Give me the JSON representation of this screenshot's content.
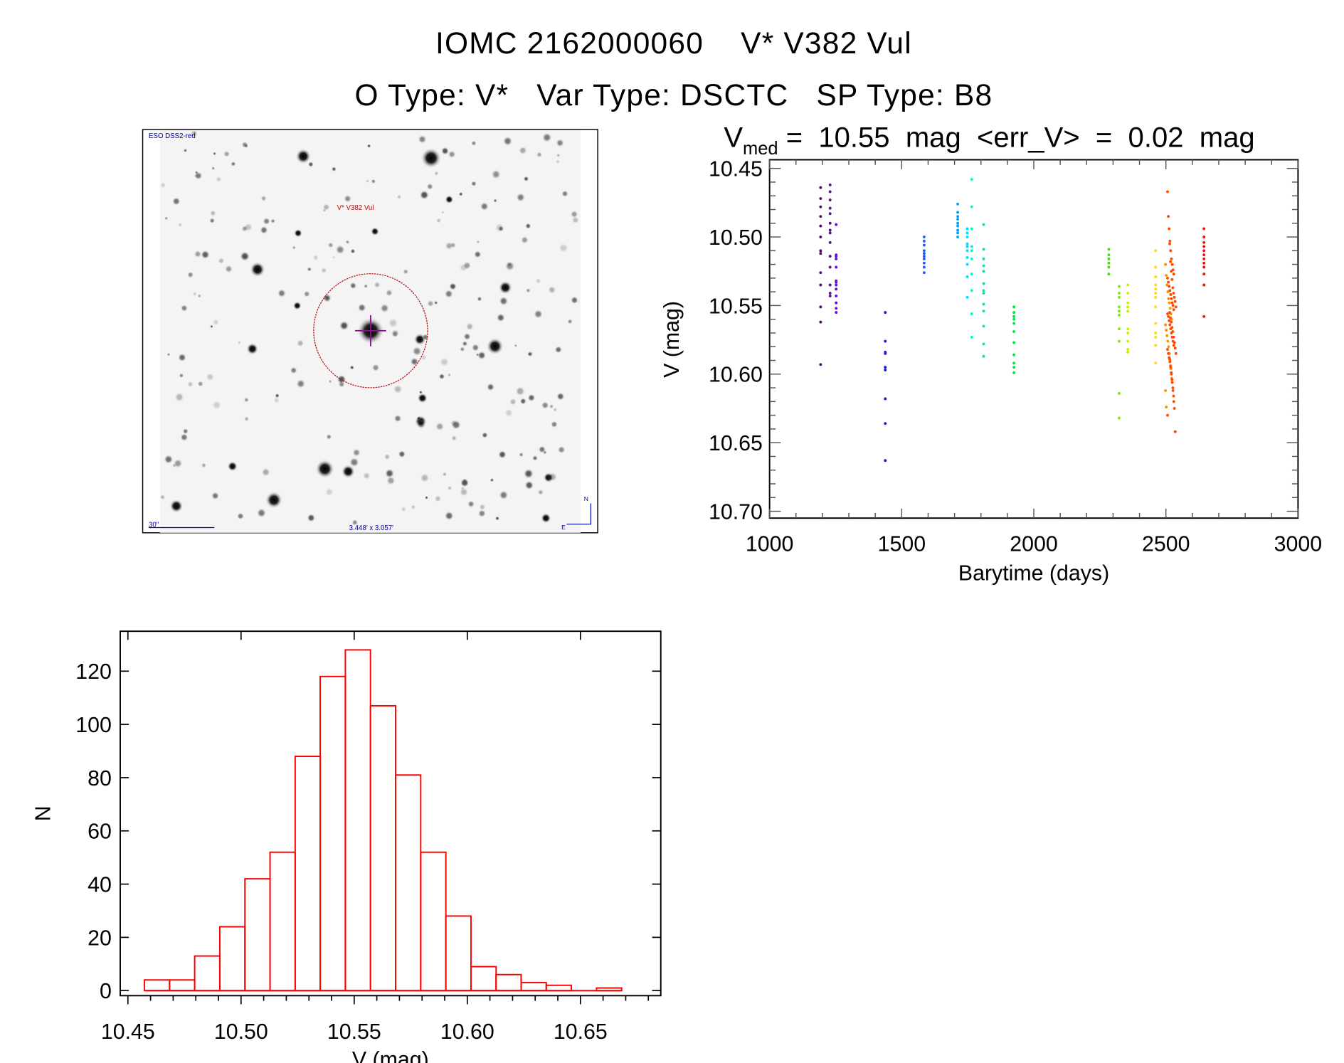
{
  "header": {
    "title_line1": "IOMC 2162000060    V* V382 Vul",
    "title_line2": "O Type: V*   Var Type: DSCTC   SP Type: B8"
  },
  "finder": {
    "survey_label": "ESO DSS2-red",
    "target_label": "V* V382 Vul",
    "scale_label": "30\"",
    "fov_label": "3.448' x 3.057'",
    "north_label": "N",
    "east_label": "E"
  },
  "lightcurve_header": {
    "v_symbol": "V",
    "v_subscript": "med",
    "rest": " =  10.55  mag  <err_V>  =  0.02  mag"
  },
  "chart_data": [
    {
      "type": "scatter",
      "title": "V_med = 10.55 mag <err_V> = 0.02 mag",
      "xlabel": "Barytime (days)",
      "ylabel": "V (mag)",
      "xlim": [
        1000,
        3000
      ],
      "ylim": [
        10.705,
        10.4437
      ],
      "xticks": [
        "1000",
        "1500",
        "2000",
        "2500",
        "3000"
      ],
      "yticks": [
        "10.45",
        "10.50",
        "10.55",
        "10.60",
        "10.65",
        "10.70"
      ],
      "grid": false,
      "series": [
        {
          "color": "#4b0f5e",
          "x": 1193,
          "y": [
            10.464,
            10.472,
            10.478,
            10.485,
            10.492,
            10.5,
            10.51,
            10.512,
            10.526,
            10.535,
            10.551,
            10.562,
            10.593
          ]
        },
        {
          "color": "#5a108a",
          "x": 1229,
          "y": [
            10.462,
            10.467,
            10.473,
            10.479,
            10.483,
            10.49,
            10.495,
            10.497,
            10.504,
            10.514,
            10.522,
            10.535,
            10.541,
            10.543
          ]
        },
        {
          "color": "#5a14e0",
          "x": 1252,
          "y": [
            10.491,
            10.513,
            10.514,
            10.516,
            10.522,
            10.532,
            10.533,
            10.535,
            10.538,
            10.543,
            10.548,
            10.552,
            10.555
          ]
        },
        {
          "color": "#1414ff",
          "x": 1438,
          "y": [
            10.555,
            10.576,
            10.584,
            10.585,
            10.595,
            10.597,
            10.618,
            10.636,
            10.663
          ]
        },
        {
          "color": "#1a5cff",
          "x": 1585,
          "y": [
            10.5,
            10.503,
            10.506,
            10.51,
            10.512,
            10.514,
            10.516,
            10.519,
            10.522,
            10.526
          ]
        },
        {
          "color": "#00a0ff",
          "x": 1712,
          "y": [
            10.476,
            10.482,
            10.485,
            10.487,
            10.49,
            10.492,
            10.495,
            10.497,
            10.5
          ]
        },
        {
          "color": "#00dcff",
          "x": 1748,
          "y": [
            10.494,
            10.497,
            10.5,
            10.505,
            10.507,
            10.51,
            10.515,
            10.52,
            10.529,
            10.544
          ]
        },
        {
          "color": "#00ffc8",
          "x": 1765,
          "y": [
            10.458,
            10.478,
            10.494,
            10.507,
            10.51,
            10.516,
            10.527,
            10.539,
            10.556,
            10.573
          ]
        },
        {
          "color": "#00f08c",
          "x": 1810,
          "y": [
            10.491,
            10.509,
            10.516,
            10.521,
            10.525,
            10.534,
            10.539,
            10.541,
            10.549,
            10.554,
            10.565,
            10.578,
            10.587
          ]
        },
        {
          "color": "#00e646",
          "x": 1925,
          "y": [
            10.551,
            10.555,
            10.558,
            10.56,
            10.563,
            10.569,
            10.577,
            10.586,
            10.592,
            10.595,
            10.599
          ]
        },
        {
          "color": "#3ce600",
          "x": 2284,
          "y": [
            10.509,
            10.513,
            10.516,
            10.519,
            10.522,
            10.527
          ]
        },
        {
          "color": "#78f000",
          "x": 2323,
          "y": [
            10.536,
            10.541,
            10.544,
            10.551,
            10.554,
            10.557,
            10.567,
            10.576,
            10.614,
            10.632
          ]
        },
        {
          "color": "#c8f000",
          "x": 2356,
          "y": [
            10.535,
            10.541,
            10.548,
            10.551,
            10.554,
            10.567,
            10.57,
            10.576,
            10.582,
            10.584
          ]
        },
        {
          "color": "#ffdc00",
          "x": 2461,
          "y": [
            10.51,
            10.522,
            10.529,
            10.535,
            10.538,
            10.541,
            10.544,
            10.551,
            10.563,
            10.57,
            10.573,
            10.579,
            10.592
          ]
        },
        {
          "color": "#ff9000",
          "x": 2510,
          "y": [
            10.52,
            10.528,
            10.535,
            10.54,
            10.545,
            10.548,
            10.552,
            10.556,
            10.56,
            10.564,
            10.568,
            10.572,
            10.576,
            10.58,
            10.585,
            10.59,
            10.596,
            10.603,
            10.612,
            10.624
          ]
        },
        {
          "color": "#ff4a00",
          "x": 2518,
          "y": [
            10.467,
            10.485,
            10.494,
            10.503,
            10.51,
            10.516,
            10.52,
            10.524,
            10.527,
            10.53,
            10.533,
            10.536,
            10.539,
            10.542,
            10.545,
            10.548,
            10.55,
            10.553,
            10.556,
            10.558,
            10.561,
            10.564,
            10.567,
            10.57,
            10.573,
            10.576,
            10.579,
            10.582,
            10.585,
            10.588,
            10.591,
            10.595,
            10.6,
            10.606,
            10.612,
            10.62,
            10.63
          ]
        },
        {
          "color": "#ff4a00",
          "x": 2526,
          "y": [
            10.505,
            10.518,
            10.525,
            10.531,
            10.537,
            10.541,
            10.544,
            10.547,
            10.551,
            10.555,
            10.559,
            10.562,
            10.566,
            10.569,
            10.573,
            10.577,
            10.581,
            10.585,
            10.589,
            10.594,
            10.599,
            10.604,
            10.61,
            10.616,
            10.625,
            10.642
          ]
        },
        {
          "color": "#ff0a00",
          "x": 2644,
          "y": [
            10.494,
            10.5,
            10.504,
            10.507,
            10.51,
            10.513,
            10.516,
            10.519,
            10.522,
            10.527,
            10.535,
            10.558
          ]
        }
      ]
    },
    {
      "type": "bar",
      "subtype": "histogram",
      "xlabel": "V (mag)",
      "ylabel": "N",
      "xlim": [
        10.4466,
        10.6855
      ],
      "ylim": [
        -1.9,
        135
      ],
      "xticks": [
        "10.45",
        "10.50",
        "10.55",
        "10.60",
        "10.65"
      ],
      "yticks": [
        "0",
        "20",
        "40",
        "60",
        "80",
        "100",
        "120"
      ],
      "bin_start": 10.4573,
      "bin_width": 0.0111,
      "counts": [
        4,
        4,
        13,
        24,
        42,
        52,
        88,
        118,
        128,
        107,
        81,
        52,
        28,
        9,
        6,
        3,
        2,
        0,
        1
      ],
      "color": "#ff0000"
    }
  ]
}
